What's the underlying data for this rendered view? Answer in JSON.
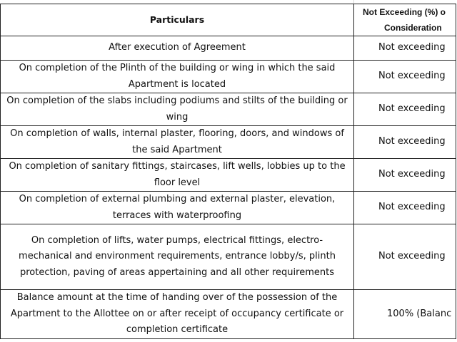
{
  "header": {
    "particulars": "Particulars",
    "limit_line1": "Not Exceeding (%) o",
    "limit_line2": "Consideration"
  },
  "rows": [
    {
      "particular": "After execution of Agreement",
      "limit": "Not exceeding"
    },
    {
      "particular": "On completion of the Plinth of the building or wing in which the said Apartment is located",
      "limit": "Not exceeding"
    },
    {
      "particular": "On completion of the slabs including podiums and stilts of the building or wing",
      "limit": "Not exceeding"
    },
    {
      "particular": "On completion of walls, internal plaster, flooring, doors, and windows of the said Apartment",
      "limit": "Not exceeding"
    },
    {
      "particular": "On completion of sanitary fittings, staircases, lift wells, lobbies up to the floor level",
      "limit": "Not exceeding"
    },
    {
      "particular": "On completion of external plumbing and external plaster, elevation, terraces with waterproofing",
      "limit": "Not exceeding"
    },
    {
      "particular": "On completion of lifts, water pumps, electrical fittings, electro-mechanical and environment requirements, entrance lobby/s, plinth protection, paving of areas appertaining and all other requirements",
      "limit": "Not exceeding"
    },
    {
      "particular": "Balance amount at the time of handing over of the possession of the Apartment to the Allottee on or after receipt of occupancy certificate or completion certificate",
      "limit": "100% (Balanc"
    }
  ]
}
